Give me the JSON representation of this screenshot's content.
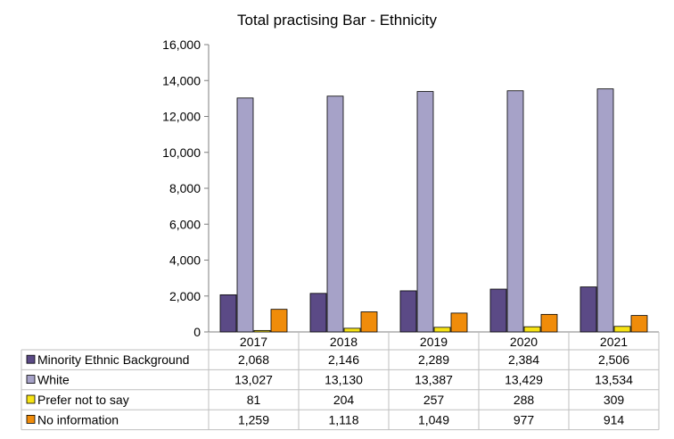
{
  "chart_data": {
    "type": "bar",
    "title": "Total practising Bar - Ethnicity",
    "categories": [
      "2017",
      "2018",
      "2019",
      "2020",
      "2021"
    ],
    "ylim": [
      0,
      16000
    ],
    "yticks": [
      "0",
      "2,000",
      "4,000",
      "6,000",
      "8,000",
      "10,000",
      "12,000",
      "14,000",
      "16,000"
    ],
    "ytick_values": [
      0,
      2000,
      4000,
      6000,
      8000,
      10000,
      12000,
      14000,
      16000
    ],
    "grid": false,
    "legend": "data-table",
    "series": [
      {
        "name": "Minority Ethnic Background",
        "color": "#5b4a86",
        "values": [
          2068,
          2146,
          2289,
          2384,
          2506
        ],
        "labels": [
          "2,068",
          "2,146",
          "2,289",
          "2,384",
          "2,506"
        ]
      },
      {
        "name": "White",
        "color": "#a6a2c8",
        "values": [
          13027,
          13130,
          13387,
          13429,
          13534
        ],
        "labels": [
          "13,027",
          "13,130",
          "13,387",
          "13,429",
          "13,534"
        ]
      },
      {
        "name": "Prefer not to say",
        "color": "#f7e315",
        "values": [
          81,
          204,
          257,
          288,
          309
        ],
        "labels": [
          "81",
          "204",
          "257",
          "288",
          "309"
        ]
      },
      {
        "name": "No information",
        "color": "#f08c0a",
        "values": [
          1259,
          1118,
          1049,
          977,
          914
        ],
        "labels": [
          "1,259",
          "1,118",
          "1,049",
          "977",
          "914"
        ]
      }
    ]
  }
}
